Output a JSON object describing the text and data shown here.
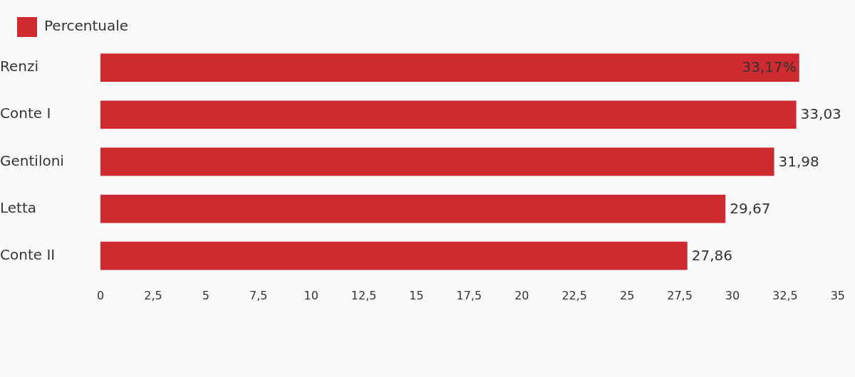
{
  "chart_data": {
    "type": "bar",
    "orientation": "horizontal",
    "categories": [
      "Renzi",
      "Conte I",
      "Gentiloni",
      "Letta",
      "Conte II"
    ],
    "series": [
      {
        "name": "Percentuale",
        "color": "#cf2a30",
        "values": [
          33.17,
          33.03,
          31.98,
          29.67,
          27.86
        ],
        "value_labels": [
          "33,17%",
          "33,03",
          "31,98",
          "29,67",
          "27,86"
        ]
      }
    ],
    "xlim": [
      0,
      35
    ],
    "xticks": [
      0,
      {
        "value": 2.5,
        "label": "2,5"
      },
      5,
      {
        "value": 7.5,
        "label": "7,5"
      },
      10,
      {
        "value": 12.5,
        "label": "12,5"
      },
      15,
      {
        "value": 17.5,
        "label": "17,5"
      },
      20,
      {
        "value": 22.5,
        "label": "22,5"
      },
      25,
      {
        "value": 27.5,
        "label": "27,5"
      },
      30,
      {
        "value": 32.5,
        "label": "32,5"
      },
      35
    ],
    "grid": false,
    "legend": "top left"
  }
}
